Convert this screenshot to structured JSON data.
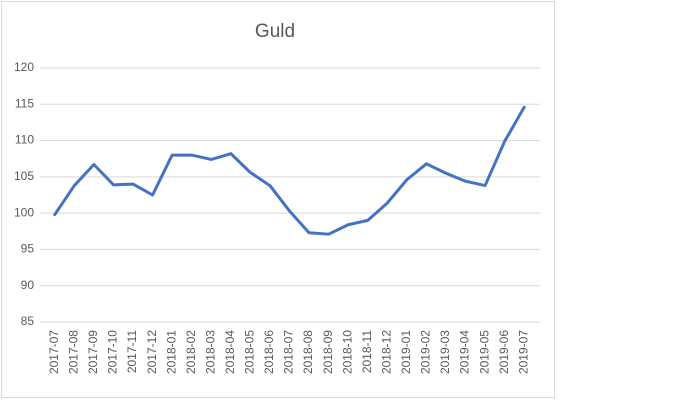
{
  "chart_data": {
    "type": "line",
    "title": "Guld",
    "categories": [
      "2017-07",
      "2017-08",
      "2017-09",
      "2017-10",
      "2017-11",
      "2017-12",
      "2018-01",
      "2018-02",
      "2018-03",
      "2018-04",
      "2018-05",
      "2018-06",
      "2018-07",
      "2018-08",
      "2018-09",
      "2018-10",
      "2018-11",
      "2018-12",
      "2019-01",
      "2019-02",
      "2019-03",
      "2019-04",
      "2019-05",
      "2019-06",
      "2019-07"
    ],
    "values": [
      99.8,
      103.8,
      106.7,
      103.9,
      104.0,
      102.5,
      108.0,
      108.0,
      107.4,
      108.2,
      105.6,
      103.8,
      100.3,
      97.3,
      97.1,
      98.4,
      99.0,
      101.4,
      104.6,
      106.8,
      105.5,
      104.4,
      103.8,
      109.9,
      114.6
    ],
    "color": "#4472c4",
    "ylim": [
      85,
      120
    ],
    "yticks": [
      85,
      90,
      95,
      100,
      105,
      110,
      115,
      120
    ],
    "grid": true
  }
}
